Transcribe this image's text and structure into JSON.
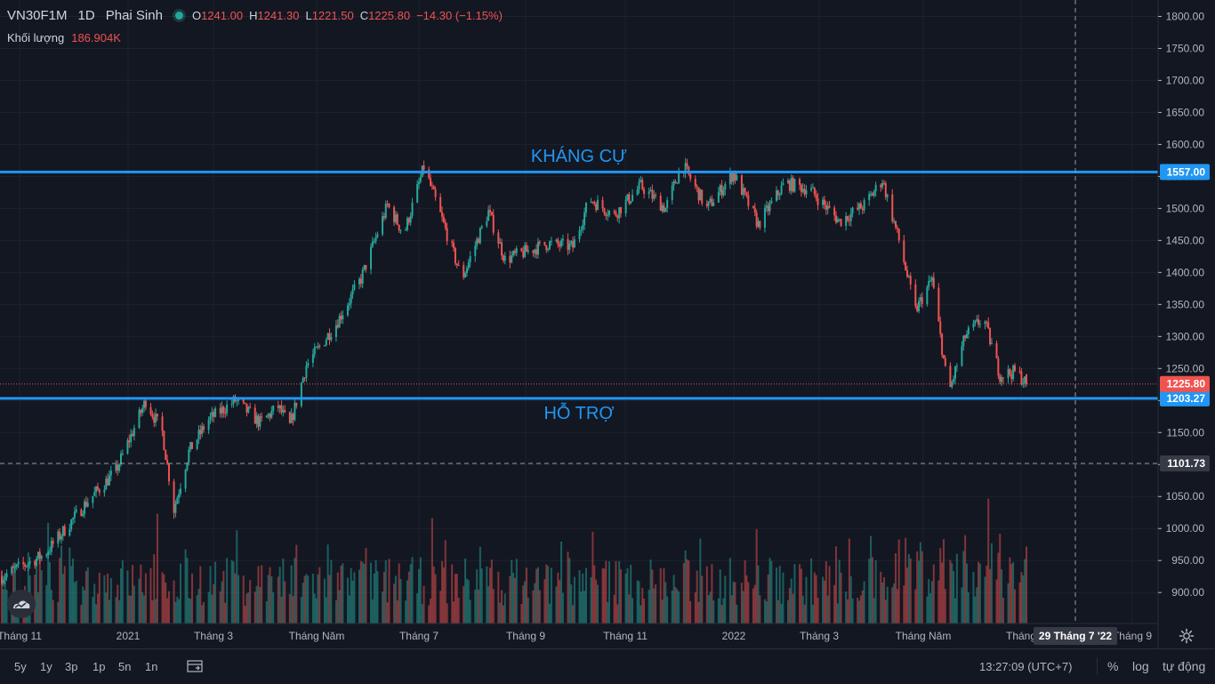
{
  "legend": {
    "symbol": "VN30F1M",
    "interval": "1D",
    "exchange": "Phai Sinh",
    "o_label": "O",
    "o_value": "1241.00",
    "h_label": "H",
    "h_value": "1241.30",
    "l_label": "L",
    "l_value": "1221.50",
    "c_label": "C",
    "c_value": "1225.80",
    "change": "−14.30 (−1.15%)",
    "volume_label": "Khối lượng",
    "volume_value": "186.904K"
  },
  "annotations": {
    "resistance_text": "KHÁNG CỰ",
    "support_text": "HỖ TRỢ"
  },
  "axis": {
    "price_ticks": [
      "1800.00",
      "1750.00",
      "1700.00",
      "1650.00",
      "1600.00",
      "1550.00",
      "1500.00",
      "1450.00",
      "1400.00",
      "1350.00",
      "1300.00",
      "1250.00",
      "1200.00",
      "1150.00",
      "1100.00",
      "1050.00",
      "1000.00",
      "950.00",
      "900.00"
    ],
    "time_labels": [
      "Tháng 11",
      "2021",
      "Tháng 3",
      "Tháng Năm",
      "Tháng 7",
      "Tháng 9",
      "Tháng 11",
      "2022",
      "Tháng 3",
      "Tháng Năm",
      "Tháng",
      "Tháng 9"
    ],
    "crosshair_date": "29 Tháng 7 '22",
    "price_badges": {
      "resistance": "1557.00",
      "last": "1225.80",
      "support": "1203.27",
      "crosshair": "1101.73"
    }
  },
  "colors": {
    "background": "#131722",
    "up": "#26a69a",
    "down": "#ef5350",
    "level_line": "#2196f3",
    "grid": "#1e222d"
  },
  "toolbar": {
    "ranges": [
      "5y",
      "1y",
      "3p",
      "1p",
      "5n",
      "1n"
    ],
    "clock": "13:27:09 (UTC+7)",
    "percent": "%",
    "log": "log",
    "auto": "tự động"
  },
  "chart_data": {
    "type": "candlestick",
    "symbol": "VN30F1M",
    "interval": "1D",
    "x_range": [
      "2020-10-20",
      "2022-07-01"
    ],
    "ylim": [
      870,
      1810
    ],
    "last_bar": {
      "open": 1241.0,
      "high": 1241.3,
      "low": 1221.5,
      "close": 1225.8,
      "volume": "186.904K"
    },
    "levels": [
      {
        "label": "KHÁNG CỰ",
        "value": 1557.0
      },
      {
        "label": "HỖ TRỢ",
        "value": 1203.27
      }
    ],
    "price_path": [
      [
        "2020-10-20",
        925
      ],
      [
        "2020-11-15",
        960
      ],
      [
        "2020-12-10",
        1040
      ],
      [
        "2020-12-28",
        1090
      ],
      [
        "2021-01-15",
        1200
      ],
      [
        "2021-01-25",
        1150
      ],
      [
        "2021-02-01",
        1030
      ],
      [
        "2021-02-10",
        1120
      ],
      [
        "2021-02-22",
        1170
      ],
      [
        "2021-03-10",
        1200
      ],
      [
        "2021-03-25",
        1165
      ],
      [
        "2021-04-05",
        1190
      ],
      [
        "2021-04-12",
        1160
      ],
      [
        "2021-04-22",
        1255
      ],
      [
        "2021-05-10",
        1320
      ],
      [
        "2021-05-25",
        1390
      ],
      [
        "2021-06-10",
        1505
      ],
      [
        "2021-06-20",
        1460
      ],
      [
        "2021-07-02",
        1565
      ],
      [
        "2021-07-12",
        1490
      ],
      [
        "2021-07-25",
        1390
      ],
      [
        "2021-08-10",
        1495
      ],
      [
        "2021-08-20",
        1420
      ],
      [
        "2021-08-30",
        1430
      ],
      [
        "2021-09-15",
        1445
      ],
      [
        "2021-09-30",
        1440
      ],
      [
        "2021-10-10",
        1515
      ],
      [
        "2021-10-25",
        1490
      ],
      [
        "2021-11-10",
        1535
      ],
      [
        "2021-11-25",
        1500
      ],
      [
        "2021-12-05",
        1570
      ],
      [
        "2021-12-20",
        1500
      ],
      [
        "2022-01-05",
        1555
      ],
      [
        "2022-01-20",
        1475
      ],
      [
        "2022-02-05",
        1540
      ],
      [
        "2022-02-20",
        1530
      ],
      [
        "2022-03-10",
        1480
      ],
      [
        "2022-03-25",
        1505
      ],
      [
        "2022-04-05",
        1545
      ],
      [
        "2022-04-15",
        1450
      ],
      [
        "2022-04-25",
        1340
      ],
      [
        "2022-05-05",
        1390
      ],
      [
        "2022-05-15",
        1210
      ],
      [
        "2022-05-25",
        1300
      ],
      [
        "2022-06-05",
        1330
      ],
      [
        "2022-06-15",
        1240
      ],
      [
        "2022-06-25",
        1245
      ],
      [
        "2022-07-01",
        1226
      ]
    ]
  }
}
